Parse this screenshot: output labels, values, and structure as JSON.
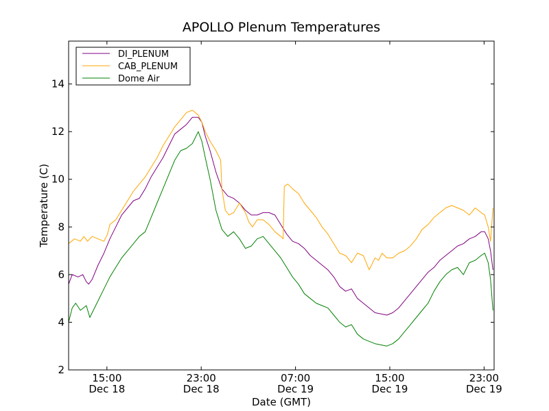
{
  "chart_data": {
    "type": "line",
    "title": "APOLLO Plenum Temperatures",
    "xlabel": "Date (GMT)",
    "ylabel": "Temperature (C)",
    "x_unit": "hours since Dec 18 11:45 GMT",
    "xlim": [
      0,
      36.1
    ],
    "ylim": [
      2,
      15.8
    ],
    "grid": false,
    "legend_position": "top-left",
    "yticks": [
      2,
      4,
      6,
      8,
      10,
      12,
      14
    ],
    "xticks": [
      {
        "x": 3.25,
        "time": "15:00",
        "date": "Dec 18"
      },
      {
        "x": 11.25,
        "time": "23:00",
        "date": "Dec 18"
      },
      {
        "x": 19.25,
        "time": "07:00",
        "date": "Dec 19"
      },
      {
        "x": 27.25,
        "time": "15:00",
        "date": "Dec 19"
      },
      {
        "x": 35.25,
        "time": "23:00",
        "date": "Dec 19"
      }
    ],
    "series": [
      {
        "name": "DI_PLENUM",
        "color": "#800080",
        "x": [
          0,
          0.3,
          0.8,
          1.2,
          1.5,
          1.7,
          2.0,
          2.5,
          3.0,
          3.5,
          4.0,
          4.5,
          5.0,
          5.5,
          6.0,
          6.5,
          7.0,
          7.5,
          8.0,
          8.5,
          9.0,
          9.5,
          10.0,
          10.5,
          11.0,
          11.3,
          11.6,
          12.0,
          12.5,
          13.0,
          13.5,
          14.0,
          14.5,
          15.0,
          15.5,
          16.0,
          16.5,
          17.0,
          17.5,
          18.0,
          18.5,
          19.0,
          19.5,
          20.0,
          20.5,
          21.0,
          21.5,
          22.0,
          22.5,
          23.0,
          23.5,
          24.0,
          24.5,
          25.0,
          25.5,
          26.0,
          26.5,
          27.0,
          27.5,
          28.0,
          28.5,
          29.0,
          29.5,
          30.0,
          30.5,
          31.0,
          31.5,
          32.0,
          32.5,
          33.0,
          33.5,
          34.0,
          34.5,
          35.0,
          35.3,
          35.6,
          35.8,
          36.0
        ],
        "values": [
          5.6,
          6.0,
          5.9,
          6.0,
          5.7,
          5.6,
          5.8,
          6.4,
          6.9,
          7.5,
          8.0,
          8.5,
          8.8,
          9.1,
          9.2,
          9.6,
          10.1,
          10.5,
          10.9,
          11.4,
          11.9,
          12.1,
          12.3,
          12.6,
          12.6,
          12.4,
          11.8,
          11.2,
          10.3,
          9.6,
          9.3,
          9.2,
          9.0,
          8.7,
          8.5,
          8.5,
          8.6,
          8.6,
          8.5,
          8.1,
          7.7,
          7.4,
          7.3,
          7.1,
          6.8,
          6.6,
          6.4,
          6.2,
          5.9,
          5.5,
          5.3,
          5.4,
          5.0,
          4.8,
          4.6,
          4.4,
          4.35,
          4.3,
          4.4,
          4.6,
          4.9,
          5.2,
          5.5,
          5.8,
          6.1,
          6.3,
          6.6,
          6.8,
          7.0,
          7.2,
          7.3,
          7.5,
          7.6,
          7.8,
          7.8,
          7.5,
          7.0,
          6.2
        ]
      },
      {
        "name": "CAB_PLENUM",
        "color": "#ffa500",
        "x": [
          0,
          0.5,
          1.0,
          1.3,
          1.6,
          2.0,
          2.5,
          3.0,
          3.3,
          3.5,
          4.0,
          4.5,
          5.0,
          5.5,
          6.0,
          6.5,
          7.0,
          7.5,
          8.0,
          8.5,
          9.0,
          9.5,
          10.0,
          10.5,
          11.0,
          11.3,
          11.6,
          12.0,
          12.5,
          12.9,
          13.0,
          13.3,
          13.6,
          14.0,
          14.5,
          15.0,
          15.3,
          15.6,
          16.0,
          16.5,
          17.0,
          17.5,
          18.0,
          18.2,
          18.3,
          18.6,
          19.0,
          19.5,
          20.0,
          20.5,
          21.0,
          21.5,
          22.0,
          22.5,
          23.0,
          23.5,
          24.0,
          24.5,
          25.0,
          25.5,
          26.0,
          26.3,
          26.6,
          27.0,
          27.5,
          28.0,
          28.5,
          29.0,
          29.5,
          30.0,
          30.5,
          31.0,
          31.5,
          32.0,
          32.5,
          33.0,
          33.5,
          34.0,
          34.5,
          35.0,
          35.3,
          35.6,
          35.8,
          36.0
        ],
        "values": [
          7.3,
          7.5,
          7.4,
          7.6,
          7.4,
          7.6,
          7.5,
          7.4,
          7.7,
          8.1,
          8.3,
          8.7,
          9.1,
          9.5,
          9.8,
          10.1,
          10.5,
          10.9,
          11.4,
          11.8,
          12.2,
          12.5,
          12.8,
          12.9,
          12.7,
          12.4,
          12.0,
          11.6,
          11.2,
          10.8,
          9.6,
          8.7,
          8.5,
          8.6,
          9.0,
          8.6,
          8.2,
          8.0,
          8.3,
          8.3,
          8.1,
          7.8,
          7.6,
          7.5,
          9.7,
          9.8,
          9.6,
          9.4,
          9.0,
          8.7,
          8.4,
          8.0,
          7.7,
          7.3,
          6.9,
          6.8,
          6.5,
          6.9,
          6.8,
          6.2,
          6.7,
          6.6,
          6.9,
          6.7,
          6.7,
          6.9,
          7.0,
          7.2,
          7.5,
          7.9,
          8.1,
          8.4,
          8.6,
          8.8,
          8.9,
          8.8,
          8.7,
          8.5,
          8.8,
          8.6,
          8.5,
          8.0,
          7.4,
          8.8
        ]
      },
      {
        "name": "Dome Air",
        "color": "#008000",
        "x": [
          0,
          0.3,
          0.6,
          1.0,
          1.5,
          1.8,
          2.0,
          2.5,
          3.0,
          3.5,
          4.0,
          4.5,
          5.0,
          5.5,
          6.0,
          6.5,
          7.0,
          7.5,
          8.0,
          8.5,
          9.0,
          9.5,
          10.0,
          10.5,
          11.0,
          11.3,
          11.6,
          12.0,
          12.5,
          13.0,
          13.5,
          14.0,
          14.5,
          15.0,
          15.5,
          16.0,
          16.5,
          17.0,
          17.5,
          18.0,
          18.5,
          19.0,
          19.5,
          20.0,
          20.5,
          21.0,
          21.5,
          22.0,
          22.5,
          23.0,
          23.5,
          24.0,
          24.5,
          25.0,
          25.5,
          26.0,
          26.5,
          27.0,
          27.5,
          28.0,
          28.5,
          29.0,
          29.5,
          30.0,
          30.5,
          31.0,
          31.5,
          32.0,
          32.5,
          33.0,
          33.5,
          34.0,
          34.5,
          35.0,
          35.3,
          35.6,
          35.8,
          36.0
        ],
        "values": [
          4.0,
          4.6,
          4.8,
          4.5,
          4.7,
          4.2,
          4.4,
          4.9,
          5.4,
          5.9,
          6.3,
          6.7,
          7.0,
          7.3,
          7.6,
          7.8,
          8.4,
          9.0,
          9.6,
          10.2,
          10.8,
          11.2,
          11.3,
          11.5,
          12.0,
          11.6,
          10.9,
          10.0,
          8.7,
          7.9,
          7.6,
          7.8,
          7.5,
          7.1,
          7.2,
          7.5,
          7.6,
          7.3,
          7.0,
          6.7,
          6.3,
          5.9,
          5.6,
          5.2,
          5.0,
          4.8,
          4.7,
          4.6,
          4.3,
          4.0,
          3.8,
          3.9,
          3.5,
          3.3,
          3.2,
          3.1,
          3.05,
          3.0,
          3.1,
          3.3,
          3.6,
          3.9,
          4.2,
          4.5,
          4.8,
          5.3,
          5.7,
          6.0,
          6.2,
          6.3,
          6.0,
          6.5,
          6.6,
          6.8,
          6.9,
          6.5,
          5.8,
          4.5
        ]
      }
    ]
  }
}
